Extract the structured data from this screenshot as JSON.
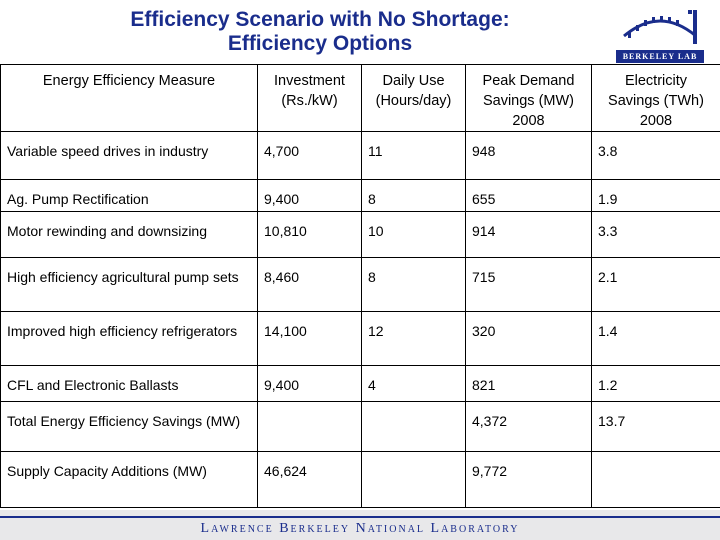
{
  "header": {
    "title_line1": "Efficiency Scenario with No Shortage:",
    "title_line2": "Efficiency Options",
    "logo_text": "BERKELEY LAB"
  },
  "table": {
    "columns": [
      "Energy Efficiency Measure",
      "Investment (Rs./kW)",
      "Daily Use (Hours/day)",
      "Peak Demand Savings (MW) 2008",
      "Electricity Savings (TWh) 2008"
    ],
    "rows": [
      [
        "Variable speed drives in industry",
        "4,700",
        "11",
        "948",
        "3.8"
      ],
      [
        "Ag. Pump Rectification",
        "9,400",
        "8",
        "655",
        "1.9"
      ],
      [
        "Motor rewinding and downsizing",
        "10,810",
        "10",
        "914",
        "3.3"
      ],
      [
        "High efficiency agricultural pump sets",
        "8,460",
        "8",
        "715",
        "2.1"
      ],
      [
        "Improved high efficiency refrigerators",
        "14,100",
        "12",
        "320",
        "1.4"
      ],
      [
        "CFL and Electronic Ballasts",
        "9,400",
        "4",
        "821",
        "1.2"
      ],
      [
        "Total Energy Efficiency Savings (MW)",
        "",
        "",
        "4,372",
        "13.7"
      ],
      [
        "Supply Capacity Additions (MW)",
        "46,624",
        "",
        "9,772",
        ""
      ]
    ]
  },
  "footer": {
    "text": "Lawrence Berkeley National Laboratory"
  },
  "colors": {
    "title": "#1a2d8c",
    "footer_band": "#e8e8ea"
  }
}
